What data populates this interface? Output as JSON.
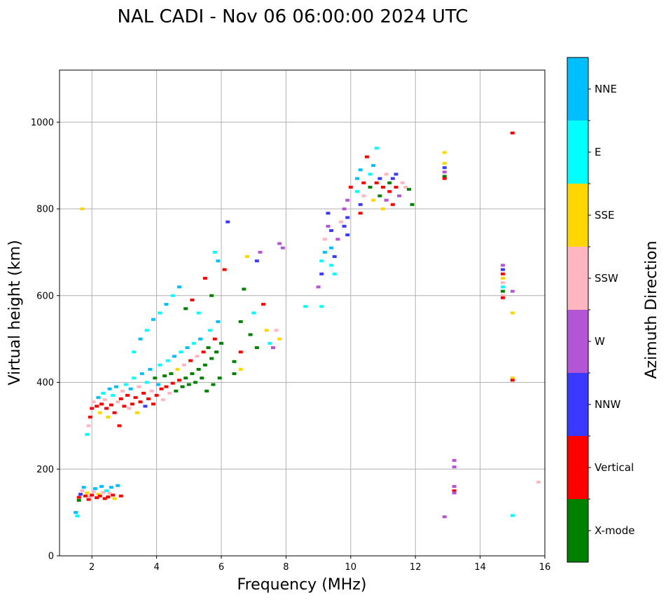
{
  "chart_data": {
    "type": "scatter",
    "title": "NAL CADI - Nov 06 06:00:00 2024 UTC",
    "xlabel": "Frequency (MHz)",
    "ylabel": "Virtual height (km)",
    "xlim": [
      1,
      16
    ],
    "ylim": [
      0,
      1120
    ],
    "xticks": [
      "2",
      "4",
      "6",
      "8",
      "10",
      "12",
      "14",
      "16"
    ],
    "yticks": [
      "0",
      "200",
      "400",
      "600",
      "800",
      "1000"
    ],
    "grid": true,
    "colorbar": {
      "label": "Azimuth Direction",
      "categories": [
        "X-mode",
        "Vertical",
        "NNW",
        "W",
        "SSW",
        "SSE",
        "E",
        "NNE"
      ],
      "colors": [
        "#008000",
        "#ff0000",
        "#3a3aff",
        "#b455d6",
        "#ffb6c1",
        "#ffd700",
        "#00ffff",
        "#00bfff"
      ]
    },
    "points": [
      [
        1.5,
        100,
        7
      ],
      [
        1.55,
        92,
        6
      ],
      [
        1.6,
        128,
        0
      ],
      [
        1.6,
        135,
        1
      ],
      [
        1.65,
        142,
        2
      ],
      [
        1.7,
        150,
        4
      ],
      [
        1.75,
        158,
        7
      ],
      [
        1.8,
        138,
        1
      ],
      [
        1.85,
        145,
        5
      ],
      [
        1.9,
        130,
        1
      ],
      [
        1.95,
        136,
        4
      ],
      [
        2.0,
        140,
        1
      ],
      [
        2.05,
        148,
        4
      ],
      [
        2.1,
        155,
        7
      ],
      [
        2.15,
        134,
        1
      ],
      [
        2.2,
        142,
        5
      ],
      [
        2.25,
        138,
        1
      ],
      [
        2.3,
        160,
        7
      ],
      [
        2.35,
        146,
        4
      ],
      [
        2.4,
        132,
        1
      ],
      [
        2.45,
        150,
        6
      ],
      [
        2.5,
        136,
        1
      ],
      [
        2.55,
        144,
        4
      ],
      [
        2.6,
        158,
        7
      ],
      [
        2.65,
        140,
        1
      ],
      [
        2.7,
        132,
        5
      ],
      [
        2.8,
        162,
        7
      ],
      [
        2.9,
        138,
        1
      ],
      [
        1.7,
        800,
        5
      ],
      [
        1.85,
        280,
        6
      ],
      [
        1.9,
        300,
        4
      ],
      [
        1.95,
        320,
        1
      ],
      [
        2.0,
        340,
        1
      ],
      [
        2.05,
        355,
        4
      ],
      [
        2.15,
        345,
        1
      ],
      [
        2.2,
        365,
        7
      ],
      [
        2.25,
        330,
        5
      ],
      [
        2.3,
        350,
        1
      ],
      [
        2.35,
        375,
        6
      ],
      [
        2.4,
        360,
        4
      ],
      [
        2.45,
        340,
        1
      ],
      [
        2.5,
        320,
        5
      ],
      [
        2.55,
        385,
        7
      ],
      [
        2.6,
        348,
        1
      ],
      [
        2.65,
        370,
        6
      ],
      [
        2.7,
        330,
        1
      ],
      [
        2.75,
        390,
        7
      ],
      [
        2.8,
        355,
        4
      ],
      [
        2.85,
        300,
        1
      ],
      [
        2.9,
        362,
        1
      ],
      [
        2.95,
        380,
        4
      ],
      [
        3.0,
        345,
        1
      ],
      [
        3.05,
        395,
        6
      ],
      [
        3.1,
        370,
        1
      ],
      [
        3.15,
        340,
        4
      ],
      [
        3.2,
        385,
        7
      ],
      [
        3.25,
        350,
        1
      ],
      [
        3.3,
        410,
        6
      ],
      [
        3.35,
        365,
        1
      ],
      [
        3.4,
        330,
        5
      ],
      [
        3.45,
        390,
        4
      ],
      [
        3.5,
        355,
        1
      ],
      [
        3.55,
        420,
        7
      ],
      [
        3.6,
        375,
        1
      ],
      [
        3.65,
        345,
        2
      ],
      [
        3.7,
        400,
        6
      ],
      [
        3.75,
        362,
        1
      ],
      [
        3.8,
        430,
        7
      ],
      [
        3.85,
        380,
        4
      ],
      [
        3.9,
        350,
        1
      ],
      [
        3.95,
        410,
        0
      ],
      [
        4.0,
        370,
        1
      ],
      [
        4.05,
        395,
        7
      ],
      [
        4.1,
        440,
        6
      ],
      [
        4.15,
        385,
        1
      ],
      [
        4.2,
        360,
        4
      ],
      [
        4.25,
        415,
        0
      ],
      [
        4.3,
        390,
        1
      ],
      [
        4.35,
        450,
        6
      ],
      [
        4.4,
        375,
        4
      ],
      [
        4.45,
        420,
        0
      ],
      [
        4.5,
        398,
        1
      ],
      [
        4.55,
        460,
        7
      ],
      [
        4.6,
        380,
        0
      ],
      [
        4.65,
        430,
        5
      ],
      [
        4.7,
        405,
        1
      ],
      [
        4.75,
        470,
        6
      ],
      [
        4.8,
        390,
        0
      ],
      [
        4.85,
        440,
        4
      ],
      [
        4.9,
        410,
        0
      ],
      [
        4.95,
        480,
        7
      ],
      [
        5.0,
        395,
        0
      ],
      [
        5.05,
        450,
        1
      ],
      [
        5.1,
        420,
        0
      ],
      [
        5.15,
        490,
        6
      ],
      [
        5.2,
        400,
        0
      ],
      [
        5.25,
        460,
        4
      ],
      [
        5.3,
        430,
        0
      ],
      [
        5.35,
        500,
        7
      ],
      [
        5.4,
        410,
        0
      ],
      [
        5.45,
        470,
        1
      ],
      [
        5.5,
        440,
        0
      ],
      [
        5.55,
        380,
        0
      ],
      [
        5.6,
        480,
        0
      ],
      [
        5.65,
        520,
        6
      ],
      [
        5.7,
        455,
        0
      ],
      [
        5.75,
        395,
        0
      ],
      [
        5.8,
        500,
        1
      ],
      [
        5.85,
        470,
        0
      ],
      [
        5.9,
        540,
        7
      ],
      [
        5.95,
        410,
        0
      ],
      [
        6.0,
        490,
        0
      ],
      [
        3.3,
        470,
        6
      ],
      [
        3.5,
        500,
        7
      ],
      [
        3.7,
        520,
        6
      ],
      [
        3.9,
        545,
        7
      ],
      [
        4.1,
        560,
        6
      ],
      [
        4.3,
        580,
        7
      ],
      [
        4.5,
        600,
        6
      ],
      [
        4.7,
        620,
        7
      ],
      [
        4.9,
        570,
        0
      ],
      [
        5.1,
        590,
        1
      ],
      [
        5.3,
        560,
        6
      ],
      [
        5.5,
        640,
        1
      ],
      [
        5.7,
        600,
        0
      ],
      [
        5.9,
        680,
        7
      ],
      [
        6.1,
        660,
        1
      ],
      [
        6.4,
        420,
        0
      ],
      [
        6.4,
        448,
        0
      ],
      [
        6.6,
        540,
        0
      ],
      [
        6.6,
        470,
        1
      ],
      [
        6.6,
        430,
        5
      ],
      [
        6.7,
        615,
        0
      ],
      [
        6.8,
        690,
        5
      ],
      [
        6.9,
        510,
        0
      ],
      [
        7.0,
        560,
        6
      ],
      [
        7.1,
        480,
        0
      ],
      [
        7.1,
        680,
        2
      ],
      [
        7.2,
        700,
        3
      ],
      [
        7.3,
        580,
        1
      ],
      [
        7.4,
        520,
        5
      ],
      [
        7.5,
        490,
        6
      ],
      [
        7.6,
        480,
        3
      ],
      [
        7.7,
        520,
        4
      ],
      [
        7.8,
        500,
        5
      ],
      [
        7.8,
        720,
        3
      ],
      [
        7.9,
        710,
        3
      ],
      [
        6.2,
        770,
        2
      ],
      [
        5.8,
        700,
        6
      ],
      [
        8.6,
        575,
        6
      ],
      [
        9.0,
        620,
        3
      ],
      [
        9.1,
        575,
        6
      ],
      [
        9.1,
        650,
        2
      ],
      [
        9.1,
        680,
        6
      ],
      [
        9.2,
        700,
        7
      ],
      [
        9.2,
        730,
        4
      ],
      [
        9.3,
        760,
        3
      ],
      [
        9.3,
        790,
        2
      ],
      [
        9.4,
        670,
        6
      ],
      [
        9.4,
        710,
        7
      ],
      [
        9.4,
        750,
        2
      ],
      [
        9.5,
        650,
        6
      ],
      [
        9.5,
        690,
        2
      ],
      [
        9.6,
        730,
        3
      ],
      [
        9.7,
        770,
        4
      ],
      [
        9.8,
        800,
        3
      ],
      [
        9.8,
        760,
        2
      ],
      [
        9.9,
        780,
        2
      ],
      [
        9.9,
        820,
        3
      ],
      [
        9.9,
        740,
        2
      ],
      [
        10.0,
        850,
        1
      ],
      [
        10.2,
        870,
        7
      ],
      [
        10.2,
        840,
        6
      ],
      [
        10.3,
        810,
        2
      ],
      [
        10.3,
        890,
        7
      ],
      [
        10.3,
        790,
        1
      ],
      [
        10.4,
        860,
        1
      ],
      [
        10.4,
        830,
        4
      ],
      [
        10.5,
        920,
        1
      ],
      [
        10.6,
        850,
        0
      ],
      [
        10.6,
        880,
        6
      ],
      [
        10.7,
        820,
        5
      ],
      [
        10.7,
        900,
        7
      ],
      [
        10.8,
        860,
        1
      ],
      [
        10.8,
        940,
        6
      ],
      [
        10.9,
        830,
        0
      ],
      [
        10.9,
        870,
        2
      ],
      [
        11.0,
        850,
        1
      ],
      [
        11.0,
        800,
        5
      ],
      [
        11.1,
        880,
        4
      ],
      [
        11.1,
        820,
        3
      ],
      [
        11.2,
        860,
        0
      ],
      [
        11.2,
        840,
        1
      ],
      [
        11.3,
        870,
        2
      ],
      [
        11.3,
        810,
        1
      ],
      [
        11.4,
        850,
        1
      ],
      [
        11.4,
        880,
        2
      ],
      [
        11.5,
        830,
        3
      ],
      [
        11.6,
        860,
        4
      ],
      [
        11.7,
        850,
        4
      ],
      [
        11.8,
        845,
        0
      ],
      [
        11.9,
        810,
        0
      ],
      [
        12.9,
        930,
        5
      ],
      [
        12.9,
        905,
        5
      ],
      [
        12.9,
        895,
        2
      ],
      [
        12.9,
        885,
        3
      ],
      [
        12.9,
        875,
        0
      ],
      [
        12.9,
        870,
        1
      ],
      [
        12.9,
        90,
        3
      ],
      [
        13.2,
        220,
        3
      ],
      [
        13.2,
        205,
        3
      ],
      [
        13.2,
        160,
        3
      ],
      [
        13.2,
        150,
        1
      ],
      [
        13.2,
        145,
        3
      ],
      [
        14.7,
        670,
        3
      ],
      [
        14.7,
        660,
        2
      ],
      [
        14.7,
        650,
        1
      ],
      [
        14.7,
        640,
        5
      ],
      [
        14.7,
        630,
        4
      ],
      [
        14.7,
        620,
        6
      ],
      [
        14.7,
        610,
        0
      ],
      [
        14.7,
        600,
        4
      ],
      [
        14.7,
        595,
        1
      ],
      [
        15.0,
        610,
        3
      ],
      [
        15.0,
        560,
        5
      ],
      [
        15.0,
        410,
        5
      ],
      [
        15.0,
        405,
        1
      ],
      [
        15.0,
        93,
        6
      ],
      [
        15.0,
        975,
        1
      ],
      [
        15.8,
        170,
        4
      ]
    ]
  }
}
